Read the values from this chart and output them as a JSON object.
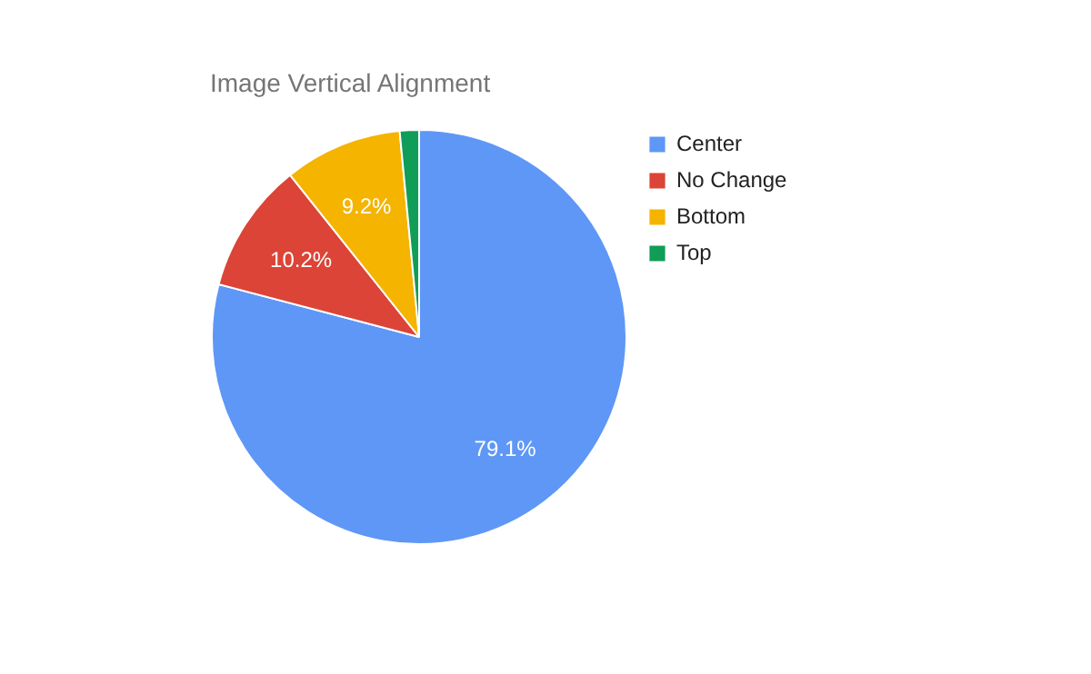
{
  "chart_data": {
    "type": "pie",
    "title": "Image Vertical Alignment",
    "categories": [
      "Center",
      "No Change",
      "Bottom",
      "Top"
    ],
    "values": [
      79.1,
      10.2,
      9.2,
      1.5
    ],
    "colors": [
      "#5e97f6",
      "#db4437",
      "#f4b400",
      "#0f9d58"
    ],
    "value_labels": [
      "79.1%",
      "10.2%",
      "9.2%",
      null
    ],
    "legend": "right"
  }
}
